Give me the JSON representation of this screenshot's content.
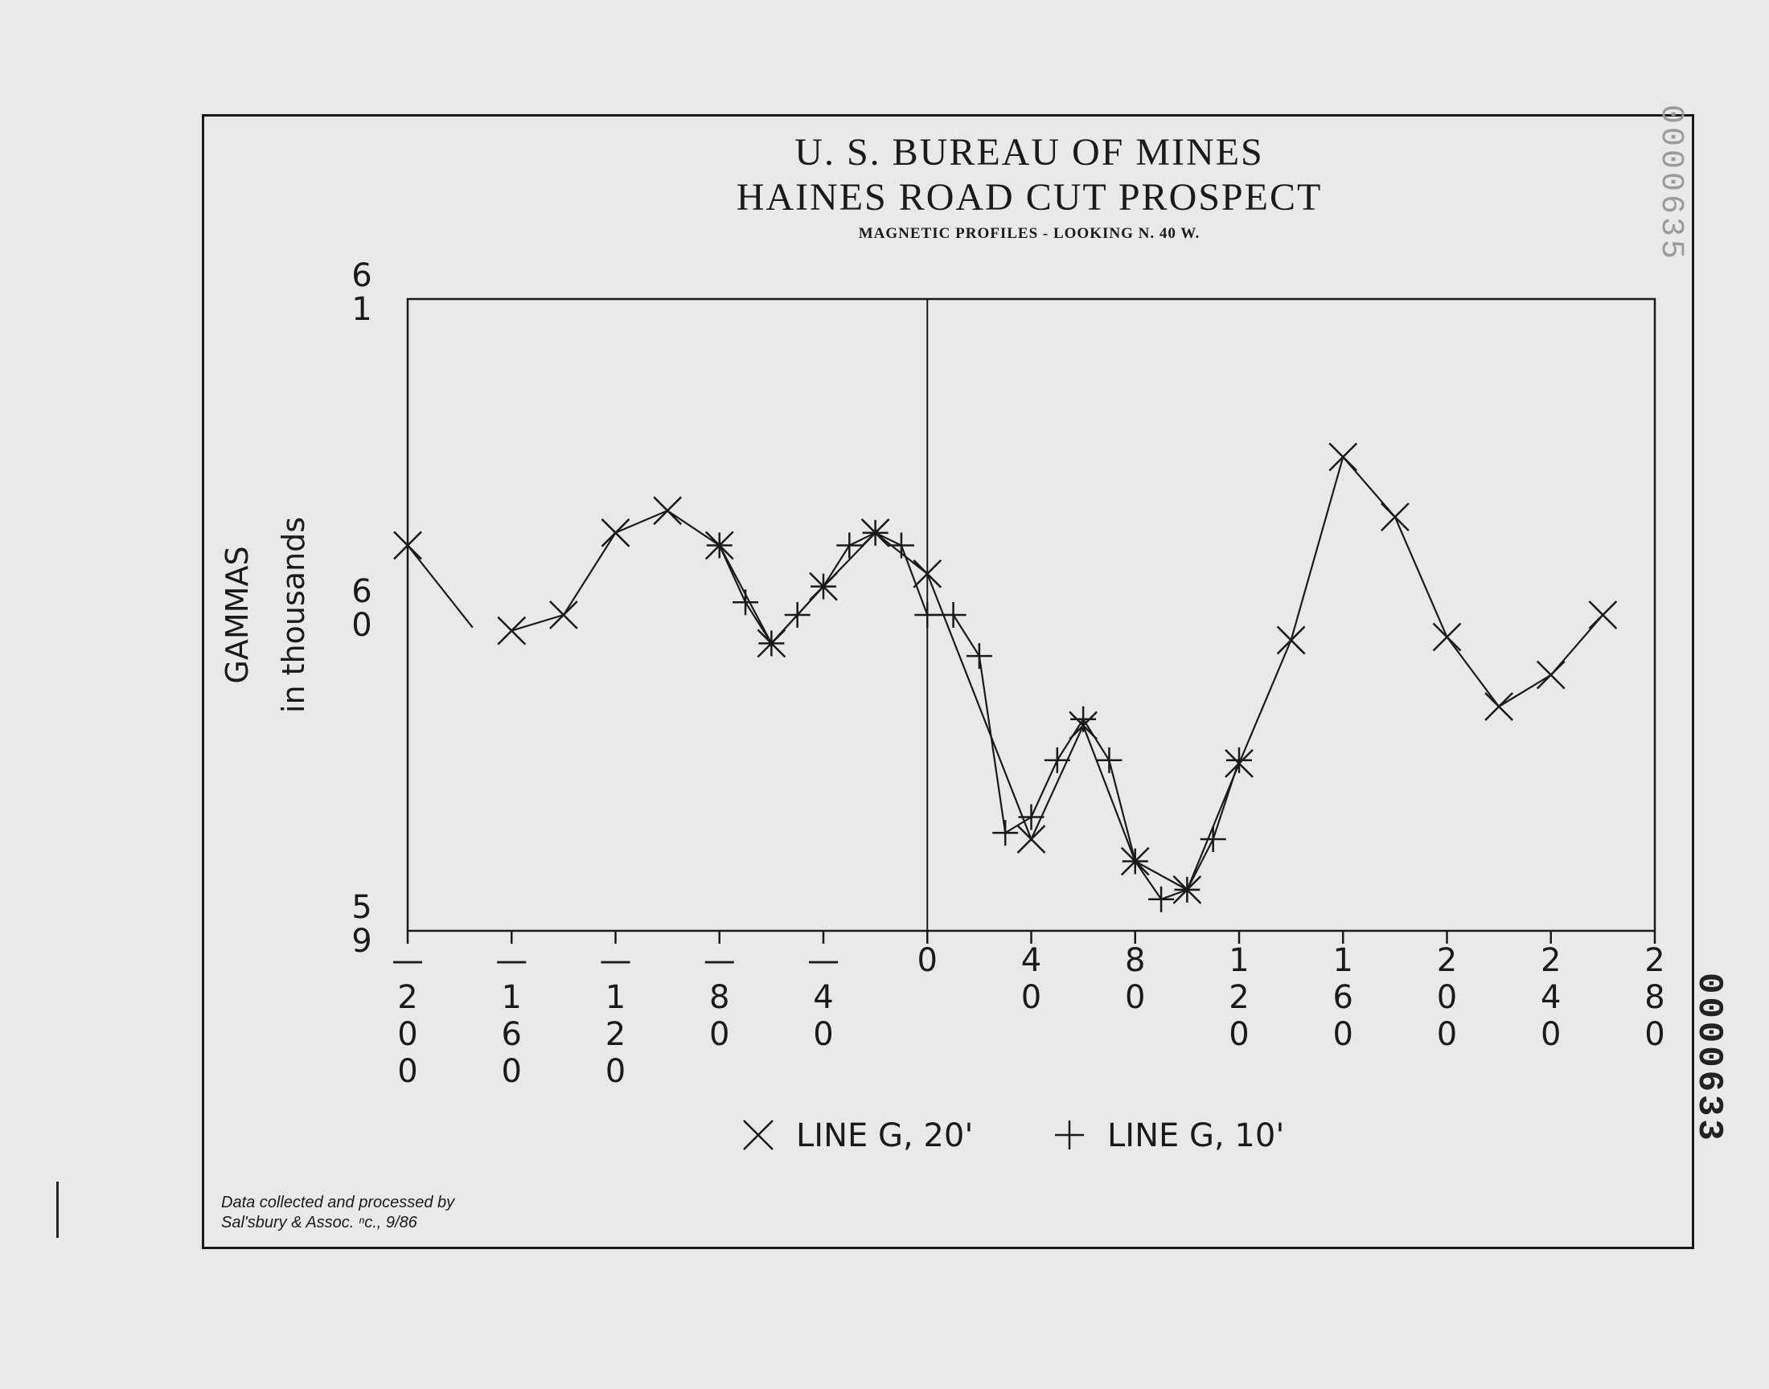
{
  "header": {
    "title_line1": "U. S. BUREAU OF MINES",
    "title_line2": "HAINES ROAD CUT PROSPECT",
    "subtitle": "MAGNETIC PROFILES - LOOKING N. 40 W."
  },
  "credit": {
    "line1": "Data collected and processed by",
    "line2": "Sal'sbury & Assoc. ⁿc., 9/86"
  },
  "stamp": {
    "main": "0000633",
    "faint": "0000635"
  },
  "chart_data": {
    "type": "line",
    "title": "U. S. BUREAU OF MINES HAINES ROAD CUT PROSPECT",
    "subtitle": "MAGNETIC PROFILES - LOOKING N. 40 W.",
    "xlabel": "",
    "ylabel": "GAMMAS in thousands",
    "xlim": [
      -200,
      280
    ],
    "ylim": [
      59,
      61
    ],
    "x_ticks": [
      -200,
      -160,
      -120,
      -80,
      -40,
      0,
      40,
      80,
      120,
      160,
      200,
      240,
      280
    ],
    "x_tick_labels": [
      "-200",
      "-160",
      "-120",
      "-80",
      "-40",
      "0",
      "40",
      "80",
      "120",
      "160",
      "200",
      "240",
      "280"
    ],
    "y_ticks": [
      59,
      60,
      61
    ],
    "y_tick_labels": [
      "59",
      "60",
      "61"
    ],
    "zero_line_x": 0,
    "grid": false,
    "legend_position": "bottom-center",
    "series": [
      {
        "name": "LINE G, 20'",
        "marker": "x",
        "segments": [
          [
            [
              -200,
              60.22
            ],
            [
              -175,
              59.96
            ]
          ],
          [
            [
              -160,
              59.95
            ],
            [
              -140,
              60.0
            ],
            [
              -120,
              60.26
            ],
            [
              -100,
              60.33
            ],
            [
              -80,
              60.22
            ],
            [
              -60,
              59.91
            ],
            [
              -40,
              60.09
            ],
            [
              -20,
              60.26
            ],
            [
              0,
              60.13
            ],
            [
              40,
              59.29
            ],
            [
              60,
              59.65
            ],
            [
              80,
              59.22
            ],
            [
              100,
              59.13
            ],
            [
              120,
              59.53
            ],
            [
              140,
              59.92
            ],
            [
              160,
              60.5
            ],
            [
              180,
              60.31
            ],
            [
              200,
              59.93
            ],
            [
              220,
              59.71
            ],
            [
              240,
              59.81
            ],
            [
              260,
              60.0
            ]
          ]
        ]
      },
      {
        "name": "LINE G, 10'",
        "marker": "+",
        "segments": [
          [
            [
              -80,
              60.22
            ],
            [
              -70,
              60.04
            ],
            [
              -60,
              59.91
            ],
            [
              -50,
              60.0
            ],
            [
              -40,
              60.09
            ],
            [
              -30,
              60.22
            ],
            [
              -20,
              60.26
            ],
            [
              -10,
              60.22
            ],
            [
              0,
              60.0
            ],
            [
              10,
              60.0
            ],
            [
              20,
              59.87
            ],
            [
              30,
              59.31
            ],
            [
              40,
              59.36
            ],
            [
              50,
              59.54
            ],
            [
              60,
              59.67
            ],
            [
              70,
              59.54
            ],
            [
              80,
              59.22
            ],
            [
              90,
              59.1
            ],
            [
              100,
              59.13
            ],
            [
              110,
              59.29
            ],
            [
              120,
              59.54
            ]
          ]
        ]
      }
    ]
  }
}
